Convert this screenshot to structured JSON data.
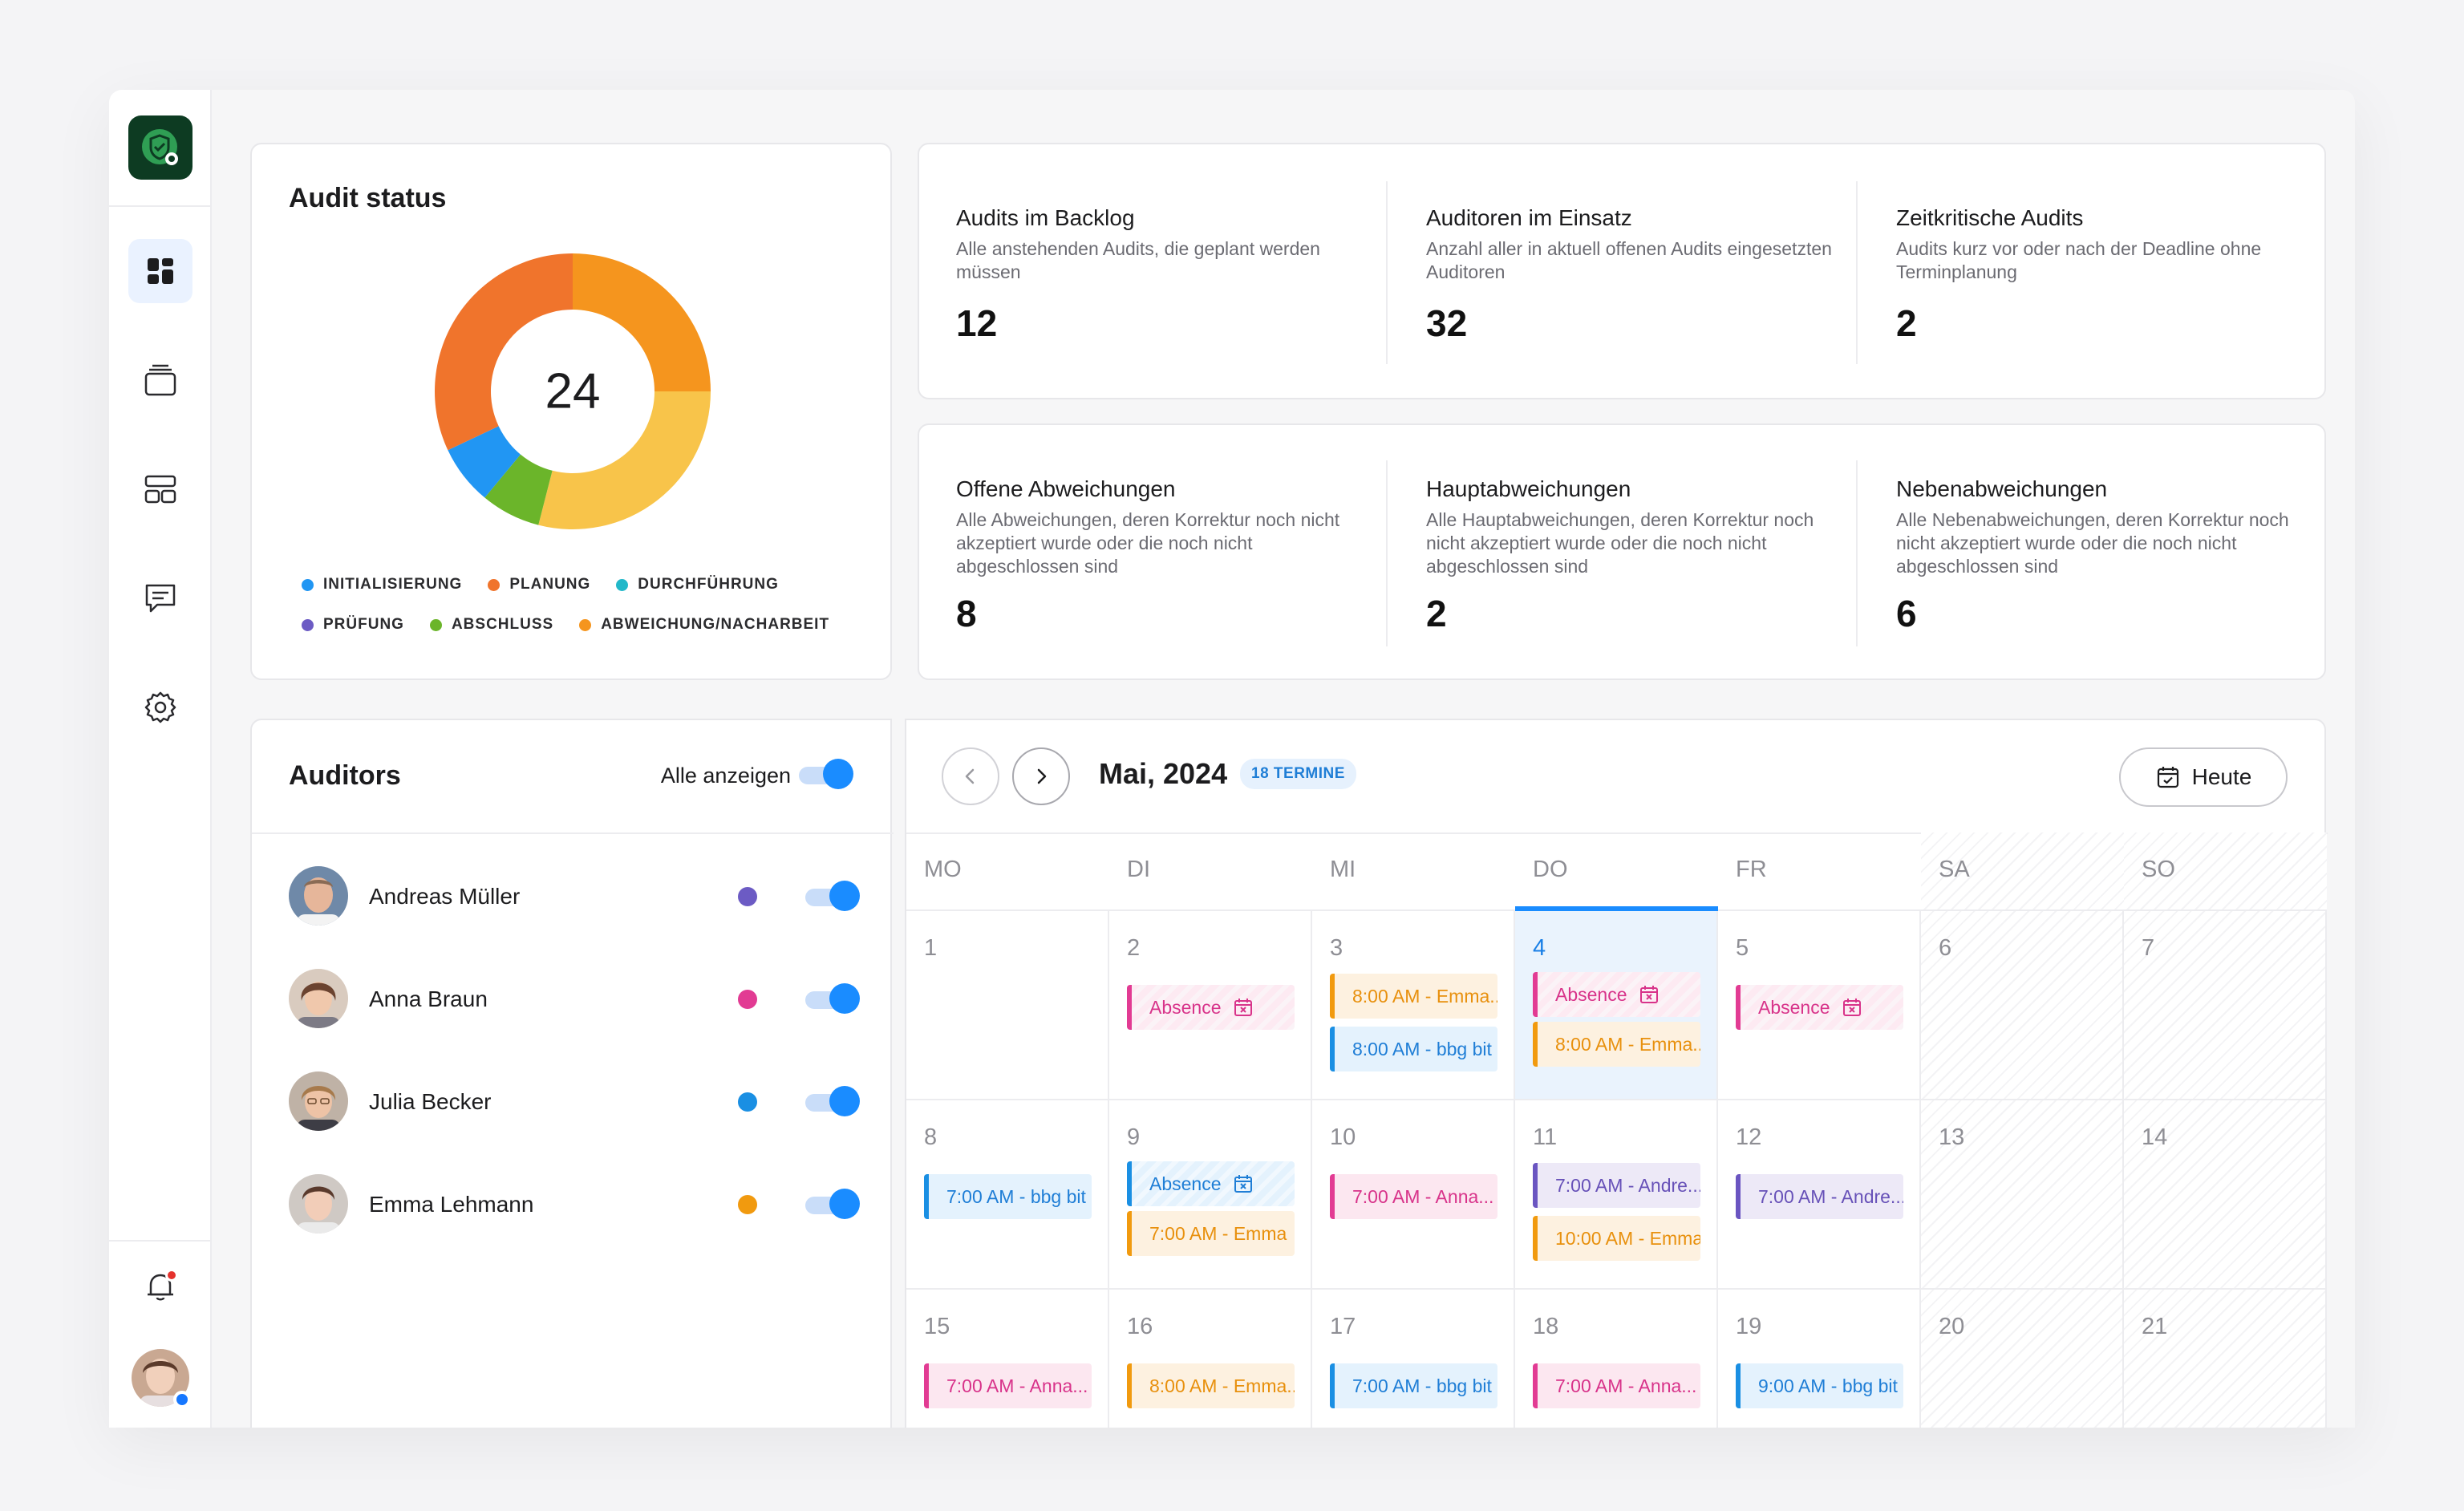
{
  "audit_status": {
    "title": "Audit status",
    "total": "24",
    "segments": [
      {
        "label": "ABWEICHUNG/NACHARBEIT",
        "fraction": 0.25,
        "color": "#f5951e"
      },
      {
        "label": "PRÜFUNG",
        "fraction": 0.0,
        "color": "#6c5bc4"
      },
      {
        "label": "Yellow",
        "fraction": 0.29,
        "color": "#f8c44a"
      },
      {
        "label": "ABSCHLUSS",
        "fraction": 0.07,
        "color": "#6bb52a"
      },
      {
        "label": "INITIALISIERUNG",
        "fraction": 0.07,
        "color": "#2196f3"
      },
      {
        "label": "PLANUNG",
        "fraction": 0.32,
        "color": "#f0742c"
      }
    ],
    "legend_row1": [
      {
        "label": "INITIALISIERUNG",
        "color": "#2196f3"
      },
      {
        "label": "PLANUNG",
        "color": "#f0742c"
      },
      {
        "label": "DURCHFÜHRUNG",
        "color": "#22b8c9"
      }
    ],
    "legend_row2": [
      {
        "label": "PRÜFUNG",
        "color": "#6c5bc4"
      },
      {
        "label": "ABSCHLUSS",
        "color": "#6bb52a"
      },
      {
        "label": "ABWEICHUNG/NACHARBEIT",
        "color": "#f5951e"
      }
    ]
  },
  "stats_top": [
    {
      "title": "Audits im Backlog",
      "desc": "Alle anstehenden Audits, die geplant werden müssen",
      "value": "12"
    },
    {
      "title": "Auditoren im Einsatz",
      "desc": "Anzahl aller in aktuell offenen Audits eingesetzten Auditoren",
      "value": "32"
    },
    {
      "title": "Zeitkritische Audits",
      "desc": "Audits kurz vor oder nach der Deadline ohne Terminplanung",
      "value": "2"
    }
  ],
  "stats_bottom": [
    {
      "title": "Offene Abweichungen",
      "desc": "Alle Abweichungen, deren Korrektur noch nicht akzeptiert wurde oder die noch nicht abgeschlossen sind",
      "value": "8"
    },
    {
      "title": "Hauptabweichungen",
      "desc": "Alle Hauptabweichungen, deren Korrektur noch nicht akzeptiert wurde oder die noch nicht abgeschlossen sind",
      "value": "2"
    },
    {
      "title": "Nebenabweichungen",
      "desc": "Alle Nebenabweichungen, deren Korrektur noch nicht akzeptiert wurde oder die noch nicht abgeschlossen sind",
      "value": "6"
    }
  ],
  "auditors": {
    "title": "Auditors",
    "show_all_label": "Alle anzeigen",
    "list": [
      {
        "name": "Andreas Müller",
        "color": "#6c5bc4"
      },
      {
        "name": "Anna Braun",
        "color": "#e23b93"
      },
      {
        "name": "Julia Becker",
        "color": "#1a8fe3"
      },
      {
        "name": "Emma Lehmann",
        "color": "#f19a0f"
      }
    ]
  },
  "calendar": {
    "month_label": "Mai, 2024",
    "badge": "18 TERMINE",
    "today_label": "Heute",
    "weekdays": [
      "MO",
      "DI",
      "MI",
      "DO",
      "FR",
      "SA",
      "SO"
    ],
    "days": [
      "1",
      "2",
      "3",
      "4",
      "5",
      "6",
      "7",
      "8",
      "9",
      "10",
      "11",
      "12",
      "13",
      "14",
      "15",
      "16",
      "17",
      "18",
      "19",
      "20",
      "21"
    ],
    "events": {
      "d2": [
        {
          "text": "Absence",
          "style": "ev-absence-pink",
          "icon": true
        }
      ],
      "d3": [
        {
          "text": "8:00 AM - Emma...",
          "style": "ev-orange"
        },
        {
          "text": "8:00 AM - bbg bit",
          "style": "ev-blue"
        }
      ],
      "d4": [
        {
          "text": "Absence",
          "style": "ev-absence-pink",
          "icon": true
        },
        {
          "text": "8:00 AM - Emma...",
          "style": "ev-orange"
        }
      ],
      "d5": [
        {
          "text": "Absence",
          "style": "ev-absence-pink",
          "icon": true
        }
      ],
      "d8": [
        {
          "text": "7:00 AM - bbg bit",
          "style": "ev-blue"
        }
      ],
      "d9": [
        {
          "text": "Absence",
          "style": "ev-absence-blue",
          "icon": true
        },
        {
          "text": "7:00 AM - Emma",
          "style": "ev-orange"
        }
      ],
      "d10": [
        {
          "text": "7:00 AM - Anna...",
          "style": "ev-pink"
        }
      ],
      "d11": [
        {
          "text": "7:00 AM - Andre...",
          "style": "ev-purple"
        },
        {
          "text": "10:00 AM - Emma",
          "style": "ev-orange"
        }
      ],
      "d12": [
        {
          "text": "7:00 AM - Andre...",
          "style": "ev-purple"
        }
      ],
      "d15": [
        {
          "text": "7:00 AM - Anna...",
          "style": "ev-pink"
        }
      ],
      "d16": [
        {
          "text": "8:00 AM - Emma...",
          "style": "ev-orange"
        }
      ],
      "d17": [
        {
          "text": "7:00 AM - bbg bit",
          "style": "ev-blue"
        }
      ],
      "d18": [
        {
          "text": "7:00 AM - Anna...",
          "style": "ev-pink"
        }
      ],
      "d19": [
        {
          "text": "9:00 AM - bbg bit",
          "style": "ev-blue"
        }
      ]
    }
  },
  "sidebar": {
    "icons": [
      "dashboard-icon",
      "stack-icon",
      "grid-icon",
      "chat-icon",
      "settings-icon"
    ],
    "bell_icon": "bell-icon"
  }
}
